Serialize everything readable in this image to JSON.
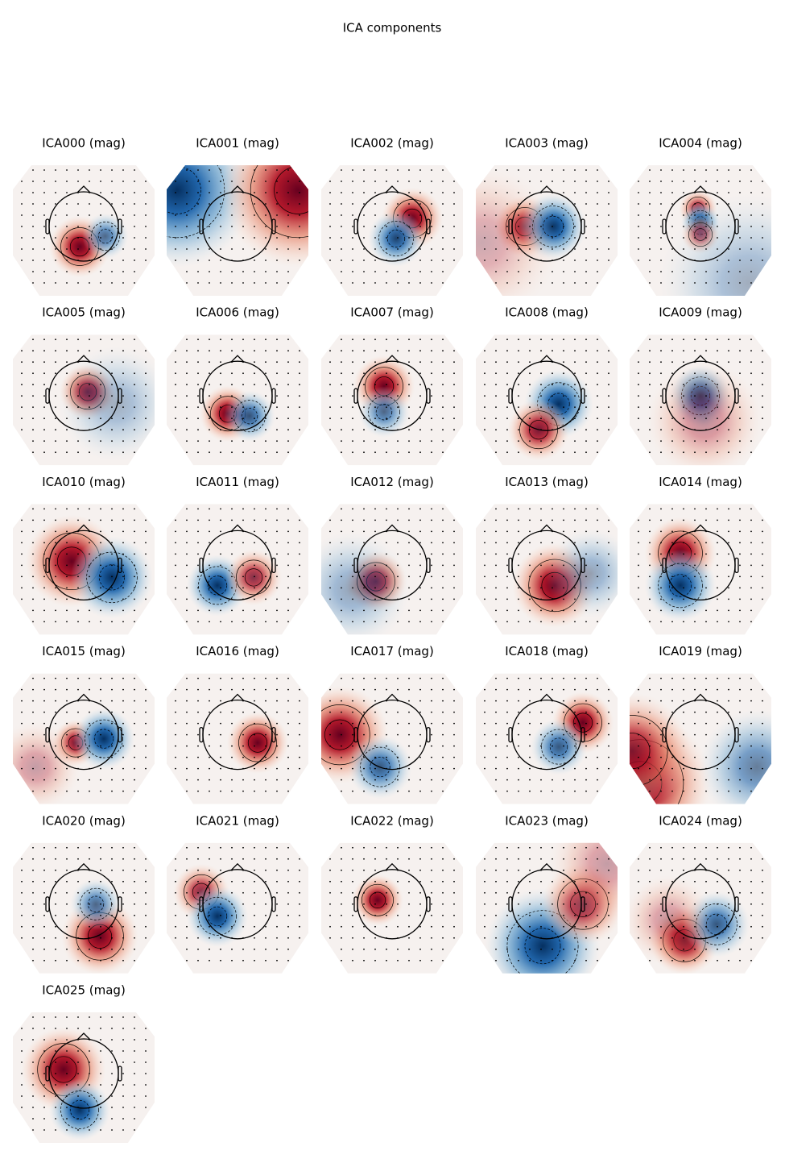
{
  "title": "ICA components",
  "components": [
    "ICA000 (mag)",
    "ICA001 (mag)",
    "ICA002 (mag)",
    "ICA003 (mag)",
    "ICA004 (mag)",
    "ICA005 (mag)",
    "ICA006 (mag)",
    "ICA007 (mag)",
    "ICA008 (mag)",
    "ICA009 (mag)",
    "ICA010 (mag)",
    "ICA011 (mag)",
    "ICA012 (mag)",
    "ICA013 (mag)",
    "ICA014 (mag)",
    "ICA015 (mag)",
    "ICA016 (mag)",
    "ICA017 (mag)",
    "ICA018 (mag)",
    "ICA019 (mag)",
    "ICA020 (mag)",
    "ICA021 (mag)",
    "ICA022 (mag)",
    "ICA023 (mag)",
    "ICA024 (mag)",
    "ICA025 (mag)"
  ]
}
